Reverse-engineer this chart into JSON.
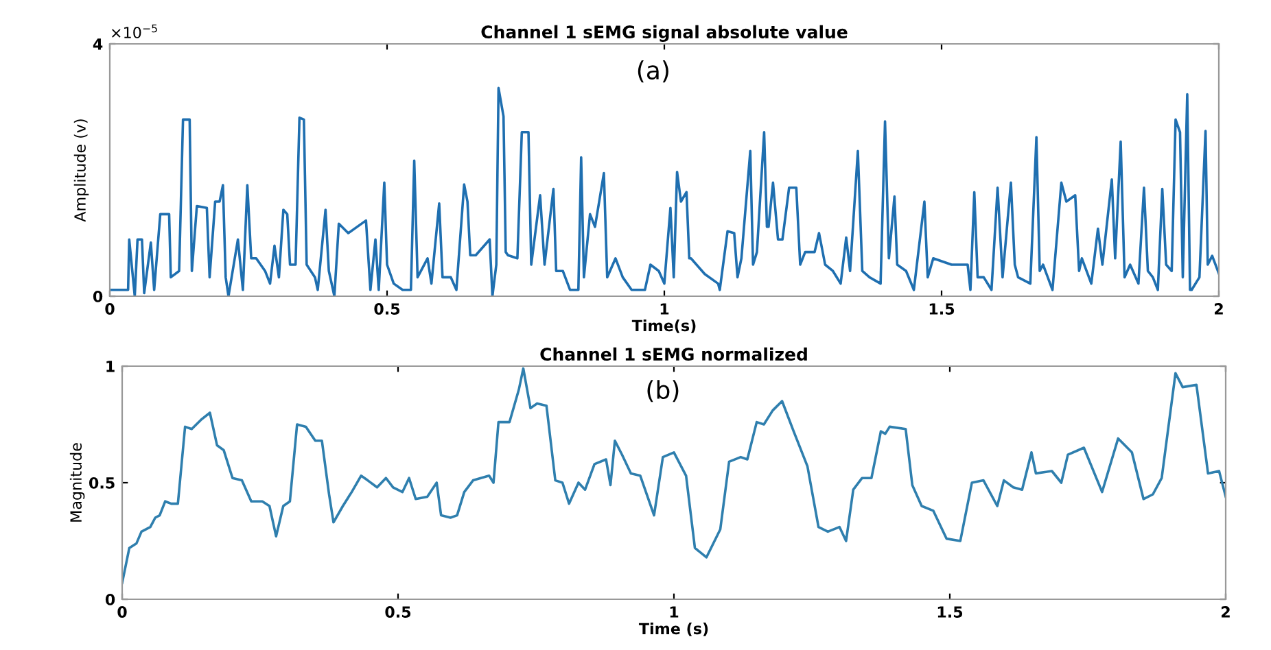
{
  "chart_data": [
    {
      "type": "line",
      "title": "Channel 1 sEMG signal absolute value",
      "xlabel": "Time(s)",
      "ylabel": "Amplitude (v)",
      "annotations": [
        "×10$^{−5}$",
        "(a)"
      ],
      "xlim": [
        0,
        2
      ],
      "xticks": [
        0,
        0.5,
        1,
        1.5,
        2
      ],
      "ylim": [
        0,
        4
      ],
      "yticks": [
        0,
        4
      ],
      "grid": false,
      "marker": "none",
      "line_style": "solid",
      "series": [
        {
          "color": "#1f6fb0",
          "x": [
            0,
            0.033,
            0.035,
            0.045,
            0.05,
            0.058,
            0.062,
            0.074,
            0.08,
            0.091,
            0.107,
            0.11,
            0.125,
            0.132,
            0.144,
            0.148,
            0.157,
            0.175,
            0.18,
            0.19,
            0.198,
            0.204,
            0.209,
            0.214,
            0.231,
            0.24,
            0.248,
            0.255,
            0.264,
            0.28,
            0.289,
            0.297,
            0.305,
            0.313,
            0.32,
            0.325,
            0.335,
            0.342,
            0.35,
            0.355,
            0.37,
            0.375,
            0.389,
            0.395,
            0.405,
            0.413,
            0.43,
            0.462,
            0.47,
            0.479,
            0.485,
            0.495,
            0.5,
            0.512,
            0.528,
            0.543,
            0.549,
            0.555,
            0.573,
            0.58,
            0.594,
            0.6,
            0.615,
            0.625,
            0.639,
            0.645,
            0.65,
            0.66,
            0.685,
            0.69,
            0.697,
            0.701,
            0.71,
            0.714,
            0.718,
            0.735,
            0.743,
            0.755,
            0.76,
            0.776,
            0.784,
            0.8,
            0.805,
            0.817,
            0.83,
            0.845,
            0.85,
            0.855,
            0.866,
            0.875,
            0.891,
            0.897,
            0.912,
            0.925,
            0.941,
            0.965,
            0.975,
            0.99,
            1.0,
            1.011,
            1.017,
            1.023,
            1.03,
            1.04,
            1.045,
            1.048,
            1.073,
            1.097,
            1.1,
            1.114,
            1.126,
            1.132,
            1.139,
            1.155,
            1.16,
            1.167,
            1.18,
            1.185,
            1.188,
            1.196,
            1.205,
            1.213,
            1.225,
            1.238,
            1.245,
            1.254,
            1.271,
            1.279,
            1.29,
            1.304,
            1.318,
            1.328,
            1.335,
            1.349,
            1.357,
            1.37,
            1.39,
            1.398,
            1.405,
            1.415,
            1.42,
            1.436,
            1.45,
            1.469,
            1.475,
            1.485,
            1.518,
            1.547,
            1.552,
            1.559,
            1.565,
            1.576,
            1.59,
            1.601,
            1.61,
            1.625,
            1.632,
            1.638,
            1.66,
            1.671,
            1.677,
            1.683,
            1.7,
            1.716,
            1.725,
            1.741,
            1.748,
            1.753,
            1.77,
            1.782,
            1.79,
            1.807,
            1.813,
            1.823,
            1.83,
            1.84,
            1.855,
            1.865,
            1.872,
            1.881,
            1.89,
            1.898,
            1.905,
            1.915,
            1.922,
            1.93,
            1.935,
            1.943,
            1.948,
            1.951,
            1.965,
            1.976,
            1.98,
            1.988,
            2.0
          ],
          "values": [
            0.1,
            0.1,
            0.9,
            0,
            0.9,
            0.9,
            0.05,
            0.85,
            0.1,
            1.3,
            1.3,
            0.3,
            0.4,
            2.8,
            2.8,
            0.4,
            1.43,
            1.4,
            0.3,
            1.5,
            1.5,
            1.76,
            0.3,
            0,
            0.9,
            0.1,
            1.76,
            0.6,
            0.6,
            0.4,
            0.2,
            0.8,
            0.3,
            1.37,
            1.3,
            0.5,
            0.5,
            2.83,
            2.8,
            0.5,
            0.3,
            0.1,
            1.37,
            0.4,
            0,
            1.15,
            1.0,
            1.2,
            0.1,
            0.9,
            0.1,
            1.8,
            0.5,
            0.2,
            0.1,
            0.1,
            2.15,
            0.3,
            0.6,
            0.2,
            1.47,
            0.3,
            0.3,
            0.1,
            1.77,
            1.5,
            0.65,
            0.65,
            0.9,
            0,
            0.5,
            3.3,
            2.85,
            0.7,
            0.65,
            0.6,
            2.6,
            2.6,
            0.5,
            1.6,
            0.5,
            1.7,
            0.4,
            0.4,
            0.1,
            0.1,
            2.2,
            0.3,
            1.3,
            1.1,
            1.95,
            0.3,
            0.6,
            0.3,
            0.1,
            0.1,
            0.5,
            0.4,
            0.2,
            1.4,
            0.3,
            1.97,
            1.5,
            1.65,
            0.6,
            0.6,
            0.35,
            0.2,
            0.1,
            1.03,
            1.0,
            0.3,
            0.6,
            2.3,
            0.5,
            0.7,
            2.6,
            1.1,
            1.1,
            1.8,
            0.9,
            0.9,
            1.72,
            1.72,
            0.5,
            0.7,
            0.7,
            1.0,
            0.5,
            0.4,
            0.2,
            0.93,
            0.4,
            2.3,
            0.4,
            0.3,
            0.2,
            2.77,
            0.6,
            1.58,
            0.5,
            0.4,
            0.1,
            1.5,
            0.3,
            0.6,
            0.5,
            0.5,
            0.1,
            1.65,
            0.3,
            0.3,
            0.1,
            1.72,
            0.3,
            1.8,
            0.5,
            0.3,
            0.2,
            2.52,
            0.4,
            0.5,
            0.1,
            1.8,
            1.5,
            1.6,
            0.4,
            0.6,
            0.2,
            1.07,
            0.5,
            1.85,
            0.6,
            2.45,
            0.3,
            0.5,
            0.2,
            1.72,
            0.4,
            0.3,
            0.1,
            1.7,
            0.5,
            0.4,
            2.8,
            2.6,
            0.3,
            3.2,
            0.1,
            0.1,
            0.3,
            2.62,
            0.5,
            0.64,
            0.36
          ]
        }
      ]
    },
    {
      "type": "line",
      "title": "Channel 1 sEMG normalized",
      "xlabel": "Time (s)",
      "ylabel": "Magnitude",
      "annotations": [
        "(b)"
      ],
      "xlim": [
        0,
        2
      ],
      "xticks": [
        0,
        0.5,
        1,
        1.5,
        2
      ],
      "ylim": [
        0,
        1
      ],
      "yticks": [
        0,
        0.5,
        1
      ],
      "grid": false,
      "marker": "none",
      "line_style": "solid",
      "series": [
        {
          "color": "#2f7fae",
          "x": [
            0,
            0.013,
            0.026,
            0.035,
            0.051,
            0.06,
            0.068,
            0.078,
            0.089,
            0.101,
            0.114,
            0.126,
            0.143,
            0.159,
            0.172,
            0.184,
            0.2,
            0.217,
            0.234,
            0.254,
            0.267,
            0.279,
            0.292,
            0.304,
            0.317,
            0.333,
            0.35,
            0.362,
            0.375,
            0.383,
            0.4,
            0.416,
            0.433,
            0.445,
            0.462,
            0.478,
            0.491,
            0.508,
            0.52,
            0.532,
            0.553,
            0.57,
            0.578,
            0.595,
            0.607,
            0.62,
            0.636,
            0.665,
            0.673,
            0.682,
            0.702,
            0.719,
            0.727,
            0.74,
            0.752,
            0.769,
            0.785,
            0.798,
            0.81,
            0.827,
            0.839,
            0.856,
            0.877,
            0.885,
            0.893,
            0.906,
            0.922,
            0.939,
            0.964,
            0.98,
            1.0,
            1.022,
            1.038,
            1.059,
            1.084,
            1.1,
            1.121,
            1.133,
            1.15,
            1.163,
            1.179,
            1.196,
            1.217,
            1.242,
            1.262,
            1.279,
            1.3,
            1.312,
            1.325,
            1.341,
            1.358,
            1.375,
            1.383,
            1.391,
            1.42,
            1.432,
            1.449,
            1.47,
            1.494,
            1.519,
            1.54,
            1.561,
            1.586,
            1.598,
            1.615,
            1.631,
            1.648,
            1.656,
            1.685,
            1.702,
            1.714,
            1.743,
            1.776,
            1.805,
            1.83,
            1.851,
            1.868,
            1.884,
            1.909,
            1.922,
            1.947,
            1.968,
            1.988,
            2.0
          ],
          "values": [
            0.07,
            0.22,
            0.24,
            0.29,
            0.31,
            0.35,
            0.36,
            0.42,
            0.41,
            0.41,
            0.74,
            0.73,
            0.77,
            0.8,
            0.66,
            0.64,
            0.52,
            0.51,
            0.42,
            0.42,
            0.4,
            0.27,
            0.4,
            0.42,
            0.75,
            0.74,
            0.68,
            0.68,
            0.45,
            0.33,
            0.4,
            0.46,
            0.53,
            0.51,
            0.48,
            0.52,
            0.48,
            0.46,
            0.52,
            0.43,
            0.44,
            0.5,
            0.36,
            0.35,
            0.36,
            0.46,
            0.51,
            0.53,
            0.5,
            0.76,
            0.76,
            0.9,
            0.99,
            0.82,
            0.84,
            0.83,
            0.51,
            0.5,
            0.41,
            0.5,
            0.47,
            0.58,
            0.6,
            0.49,
            0.68,
            0.62,
            0.54,
            0.53,
            0.36,
            0.61,
            0.63,
            0.53,
            0.22,
            0.18,
            0.3,
            0.59,
            0.61,
            0.6,
            0.76,
            0.75,
            0.81,
            0.85,
            0.72,
            0.57,
            0.31,
            0.29,
            0.31,
            0.25,
            0.47,
            0.52,
            0.52,
            0.72,
            0.71,
            0.74,
            0.73,
            0.49,
            0.4,
            0.38,
            0.26,
            0.25,
            0.5,
            0.51,
            0.4,
            0.51,
            0.48,
            0.47,
            0.63,
            0.54,
            0.55,
            0.5,
            0.62,
            0.65,
            0.46,
            0.69,
            0.63,
            0.43,
            0.45,
            0.52,
            0.97,
            0.91,
            0.92,
            0.54,
            0.55,
            0.44
          ]
        }
      ]
    }
  ]
}
